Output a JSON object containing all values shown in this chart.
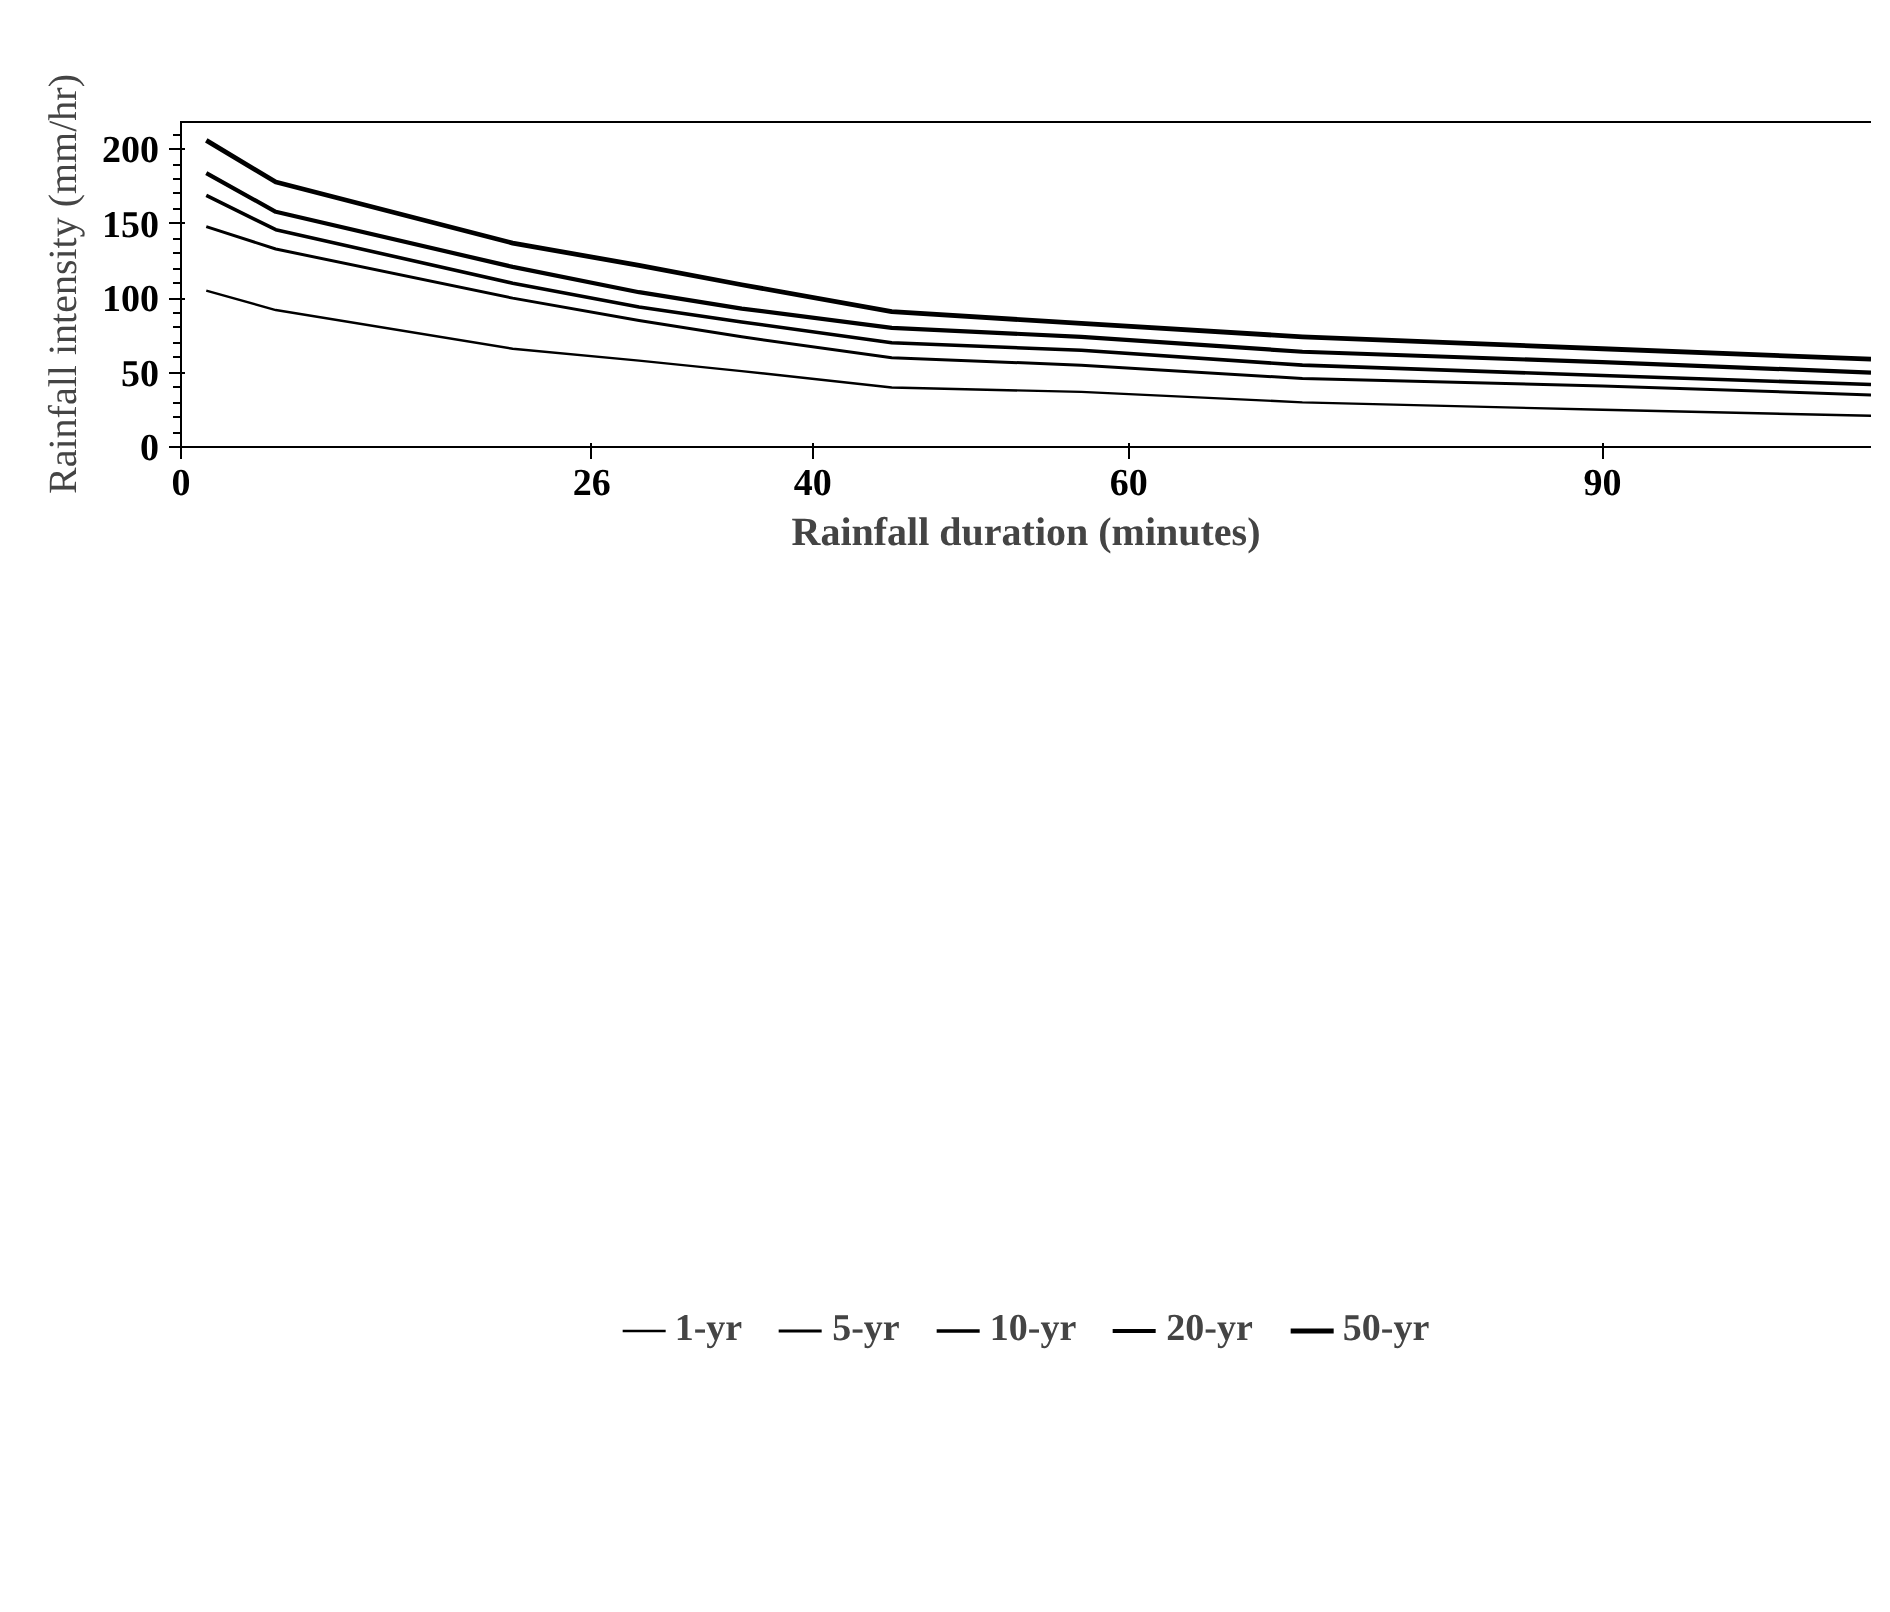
{
  "chart_data": {
    "type": "line",
    "xlabel": "Rainfall duration (minutes)",
    "ylabel": "Rainfall intensity (mm/hr)",
    "x": [
      1.6,
      6,
      21,
      29,
      35.5,
      45,
      57,
      71,
      90,
      107
    ],
    "xlim": [
      0,
      107
    ],
    "xticks": [
      0,
      26,
      40,
      60,
      90
    ],
    "ylim": [
      0,
      219
    ],
    "yticks": [
      0,
      50,
      100,
      150,
      200
    ],
    "series": [
      {
        "name": "1-yr",
        "color": "#000000",
        "values": [
          105,
          92,
          66,
          58,
          51,
          40,
          37,
          30,
          25,
          21
        ]
      },
      {
        "name": "5-yr",
        "color": "#000000",
        "values": [
          148,
          133,
          100,
          85,
          74,
          60,
          55,
          46,
          41,
          35
        ]
      },
      {
        "name": "10-yr",
        "color": "#000000",
        "values": [
          169,
          146,
          110,
          94,
          84,
          70,
          65,
          55,
          48,
          42
        ]
      },
      {
        "name": "20-yr",
        "color": "#000000",
        "values": [
          184,
          158,
          121,
          104,
          93,
          80,
          74,
          64,
          57,
          50
        ]
      },
      {
        "name": "50-yr",
        "color": "#000000",
        "values": [
          206,
          178,
          137,
          122,
          109,
          91,
          83,
          74,
          66,
          59
        ]
      }
    ],
    "legend": "bottom",
    "grid": false,
    "marker": "none",
    "line_style": "solid"
  }
}
